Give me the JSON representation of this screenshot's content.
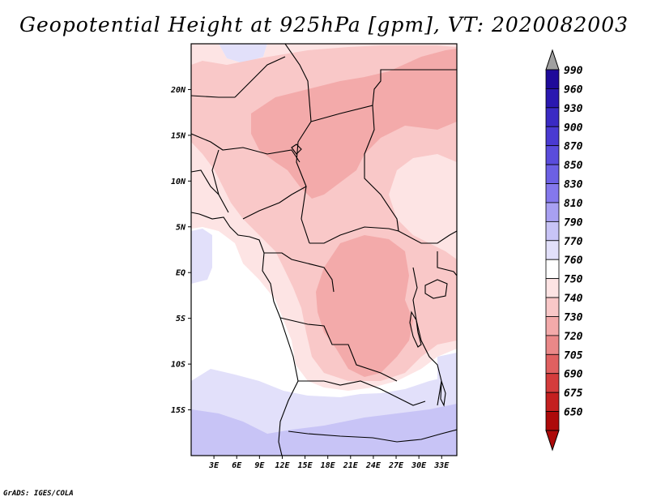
{
  "title": "Geopotential Height at 925hPa [gpm], VT: 2020082003",
  "credit": "GrADS: IGES/COLA",
  "map": {
    "lon_range": [
      0,
      35
    ],
    "lat_range": [
      -20,
      25
    ],
    "lat_ticks": [
      {
        "value": 20,
        "label": "20N"
      },
      {
        "value": 15,
        "label": "15N"
      },
      {
        "value": 10,
        "label": "10N"
      },
      {
        "value": 5,
        "label": "5N"
      },
      {
        "value": 0,
        "label": "EQ"
      },
      {
        "value": -5,
        "label": "5S"
      },
      {
        "value": -10,
        "label": "10S"
      },
      {
        "value": -15,
        "label": "15S"
      }
    ],
    "lon_ticks": [
      {
        "value": 3,
        "label": "3E"
      },
      {
        "value": 6,
        "label": "6E"
      },
      {
        "value": 9,
        "label": "9E"
      },
      {
        "value": 12,
        "label": "12E"
      },
      {
        "value": 15,
        "label": "15E"
      },
      {
        "value": 18,
        "label": "18E"
      },
      {
        "value": 21,
        "label": "21E"
      },
      {
        "value": 24,
        "label": "24E"
      },
      {
        "value": 27,
        "label": "27E"
      },
      {
        "value": 30,
        "label": "30E"
      },
      {
        "value": 33,
        "label": "33E"
      }
    ]
  },
  "colorbar": {
    "labels": [
      "990",
      "960",
      "930",
      "900",
      "870",
      "850",
      "830",
      "810",
      "790",
      "770",
      "760",
      "750",
      "740",
      "730",
      "720",
      "705",
      "690",
      "675",
      "650"
    ],
    "colors": [
      "#1e0a9a",
      "#2a18b0",
      "#3a2ac4",
      "#4a3ad2",
      "#5a4cdc",
      "#6c60e4",
      "#8478ec",
      "#a8a0f2",
      "#c8c4f6",
      "#e2e0fa",
      "#ffffff",
      "#fde4e4",
      "#f9c8c8",
      "#f3aaaa",
      "#ea8888",
      "#e06060",
      "#d43c3c",
      "#c42020",
      "#ad0a0a"
    ],
    "top_triangle_color": "#a0a0a0",
    "bottom_triangle_color": "#ad0a0a"
  },
  "field": {
    "colors": {
      "c790": "#c8c4f6",
      "c770": "#e2e0fa",
      "c760": "#ffffff",
      "c750": "#fde4e4",
      "c740": "#f9c8c8",
      "c730": "#f3aaaa"
    }
  }
}
